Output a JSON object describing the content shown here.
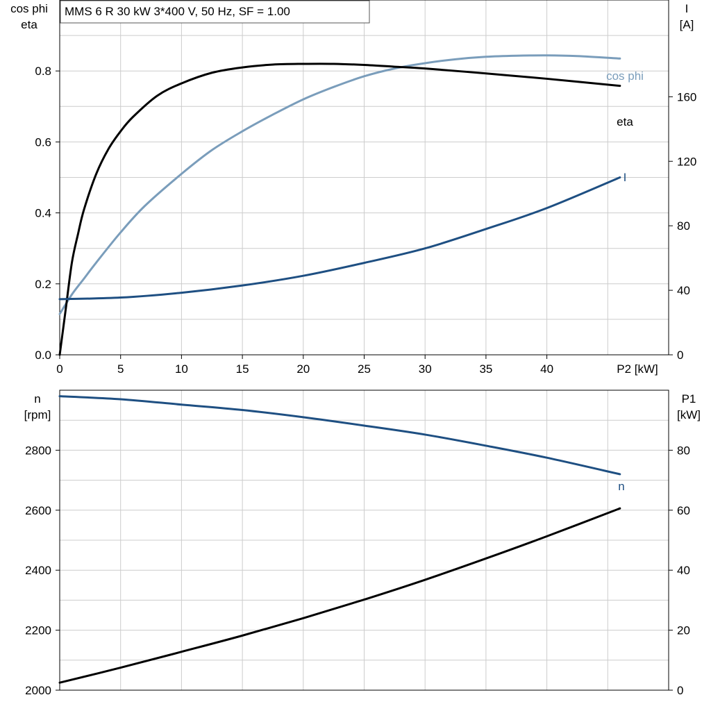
{
  "chart_data": [
    {
      "type": "line",
      "title": "MMS 6 R   30 kW   3*400 V, 50 Hz, SF = 1.00",
      "xlabel": "P2 [kW]",
      "xlim": [
        0,
        50
      ],
      "x_ticks": [
        "0",
        "5",
        "10",
        "15",
        "20",
        "25",
        "30",
        "35",
        "40"
      ],
      "ylabel_left": [
        "cos phi",
        "eta"
      ],
      "ylim_left": [
        0,
        1.0
      ],
      "y_ticks_left": [
        "0.0",
        "0.2",
        "0.4",
        "0.6",
        "0.8"
      ],
      "ylabel_right": [
        "I",
        "[A]"
      ],
      "ylim_right": [
        0,
        220
      ],
      "y_ticks_right": [
        "0",
        "40",
        "80",
        "120",
        "160"
      ],
      "grid": true,
      "series": [
        {
          "name": "cos phi",
          "axis": "left",
          "color": "#7a9dbb",
          "x": [
            0,
            1,
            2,
            3,
            5,
            7,
            10,
            12.5,
            15,
            17.5,
            20,
            22.5,
            25,
            27.5,
            30,
            32.5,
            35,
            37.5,
            40,
            42.5,
            46
          ],
          "y": [
            0.115,
            0.17,
            0.215,
            0.26,
            0.345,
            0.42,
            0.51,
            0.577,
            0.63,
            0.677,
            0.72,
            0.755,
            0.785,
            0.807,
            0.822,
            0.833,
            0.84,
            0.843,
            0.844,
            0.842,
            0.835
          ]
        },
        {
          "name": "eta",
          "axis": "left",
          "color": "#000000",
          "x": [
            0,
            0.5,
            1,
            1.5,
            2,
            3,
            4,
            5,
            6,
            8,
            10,
            12.5,
            15,
            17.5,
            20,
            22.5,
            25,
            27.5,
            30,
            35,
            40,
            46
          ],
          "y": [
            0.0,
            0.13,
            0.26,
            0.34,
            0.41,
            0.51,
            0.58,
            0.63,
            0.67,
            0.73,
            0.765,
            0.795,
            0.81,
            0.818,
            0.82,
            0.82,
            0.817,
            0.812,
            0.807,
            0.793,
            0.778,
            0.758
          ]
        },
        {
          "name": "I",
          "axis": "right",
          "color": "#1e4f82",
          "x": [
            0,
            5,
            10,
            15,
            20,
            25,
            30,
            35,
            40,
            46
          ],
          "y": [
            34.5,
            35.5,
            38.5,
            43,
            49,
            57,
            66,
            78,
            91,
            110
          ]
        }
      ]
    },
    {
      "type": "line",
      "xlim": [
        0,
        50
      ],
      "ylabel_left": [
        "n",
        "[rpm]"
      ],
      "ylim_left": [
        2000,
        3000
      ],
      "y_ticks_left": [
        "2000",
        "2200",
        "2400",
        "2600",
        "2800"
      ],
      "ylabel_right": [
        "P1",
        "[kW]"
      ],
      "ylim_right": [
        0,
        100
      ],
      "y_ticks_right": [
        "0",
        "20",
        "40",
        "60",
        "80"
      ],
      "grid": true,
      "series": [
        {
          "name": "n",
          "axis": "left",
          "color": "#1e4f82",
          "x": [
            0,
            5,
            10,
            15,
            20,
            25,
            30,
            35,
            40,
            46
          ],
          "y": [
            2980,
            2970,
            2952,
            2934,
            2910,
            2882,
            2852,
            2815,
            2775,
            2720
          ]
        },
        {
          "name": "",
          "axis": "right",
          "color": "#000000",
          "x": [
            0,
            5,
            10,
            15,
            20,
            25,
            30,
            35,
            40,
            46
          ],
          "y": [
            2.5,
            7.5,
            12.8,
            18.2,
            24,
            30.2,
            36.8,
            43.9,
            51.3,
            60.6
          ]
        }
      ]
    }
  ]
}
